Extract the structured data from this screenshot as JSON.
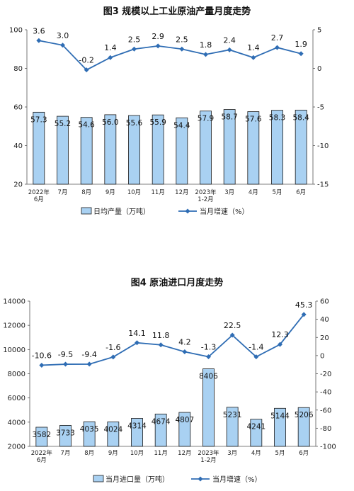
{
  "chart_data": [
    {
      "type": "bar+line",
      "title": "图3  规模以上工业原油产量月度走势",
      "categories": [
        [
          "2022年",
          "6月"
        ],
        [
          "7月"
        ],
        [
          "8月"
        ],
        [
          "9月"
        ],
        [
          "10月"
        ],
        [
          "11月"
        ],
        [
          "12月"
        ],
        [
          "2023年",
          "1-2月"
        ],
        [
          "3月"
        ],
        [
          "4月"
        ],
        [
          "5月"
        ],
        [
          "6月"
        ]
      ],
      "bar_series": {
        "name": "日均产量（万吨）",
        "values": [
          57.3,
          55.2,
          54.6,
          56.0,
          55.6,
          55.9,
          54.4,
          57.9,
          58.7,
          57.6,
          58.3,
          58.4
        ],
        "labels": [
          "57.3",
          "55.2",
          "54.6",
          "56.0",
          "55.6",
          "55.9",
          "54.4",
          "57.9",
          "58.7",
          "57.6",
          "58.3",
          "58.4"
        ],
        "axis": "left"
      },
      "line_series": {
        "name": "当月增速（%）",
        "values": [
          3.6,
          3.0,
          -0.2,
          1.4,
          2.5,
          2.9,
          2.5,
          1.8,
          2.4,
          1.4,
          2.7,
          1.9
        ],
        "labels": [
          "3.6",
          "3.0",
          "-0.2",
          "1.4",
          "2.5",
          "2.9",
          "2.5",
          "1.8",
          "2.4",
          "1.4",
          "2.7",
          "1.9"
        ],
        "axis": "right"
      },
      "left_axis": {
        "min": 20,
        "max": 100,
        "ticks": [
          "20",
          "40",
          "60",
          "80",
          "100"
        ]
      },
      "right_axis": {
        "min": -15,
        "max": 5,
        "ticks": [
          "-15",
          "-10",
          "-5",
          "0",
          "5"
        ]
      },
      "legend_position": "bottom",
      "colors": {
        "bar_fill": "#a9d1f2",
        "bar_stroke": "#1a1a1a",
        "line": "#2f6db4"
      }
    },
    {
      "type": "bar+line",
      "title": "图4  原油进口月度走势",
      "categories": [
        [
          "2022年",
          "6月"
        ],
        [
          "7月"
        ],
        [
          "8月"
        ],
        [
          "9月"
        ],
        [
          "10月"
        ],
        [
          "11月"
        ],
        [
          "12月"
        ],
        [
          "2023年",
          "1-2月"
        ],
        [
          "3月"
        ],
        [
          "4月"
        ],
        [
          "5月"
        ],
        [
          "6月"
        ]
      ],
      "bar_series": {
        "name": "当月进口量（万吨）",
        "values": [
          3582,
          3733,
          4035,
          4024,
          4314,
          4674,
          4807,
          8406,
          5231,
          4241,
          5144,
          5206
        ],
        "labels": [
          "3582",
          "3733",
          "4035",
          "4024",
          "4314",
          "4674",
          "4807",
          "8406",
          "5231",
          "4241",
          "5144",
          "5206"
        ],
        "axis": "left"
      },
      "line_series": {
        "name": "当月增速（%）",
        "values": [
          -10.6,
          -9.5,
          -9.4,
          -1.6,
          14.1,
          11.8,
          4.2,
          -1.3,
          22.5,
          -1.4,
          12.3,
          45.3
        ],
        "labels": [
          "-10.6",
          "-9.5",
          "-9.4",
          "-1.6",
          "14.1",
          "11.8",
          "4.2",
          "-1.3",
          "22.5",
          "-1.4",
          "12.3",
          "45.3"
        ],
        "axis": "right"
      },
      "left_axis": {
        "min": 2000,
        "max": 14000,
        "ticks": [
          "2000",
          "4000",
          "6000",
          "8000",
          "10000",
          "12000",
          "14000"
        ]
      },
      "right_axis": {
        "min": -100,
        "max": 60,
        "ticks": [
          "-100",
          "-80",
          "-60",
          "-40",
          "-20",
          "0",
          "20",
          "40",
          "60"
        ]
      },
      "legend_position": "bottom",
      "colors": {
        "bar_fill": "#a9d1f2",
        "bar_stroke": "#1a1a1a",
        "line": "#2f6db4"
      }
    }
  ]
}
